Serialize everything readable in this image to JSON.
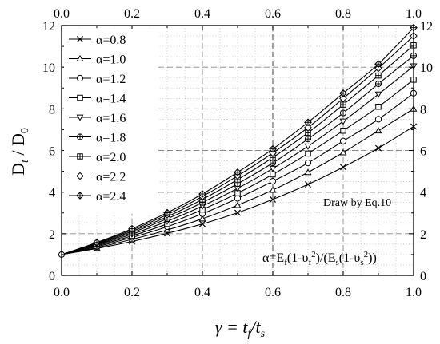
{
  "chart_data": {
    "type": "line",
    "xlabel": {
      "base": "γ = t",
      "sub1": "f",
      "mid": "/t",
      "sub2": "s"
    },
    "ylabel": {
      "base": "D",
      "sub1": "t",
      "mid": " / D",
      "sub2": "0"
    },
    "xlim": [
      0,
      1
    ],
    "ylim": [
      0,
      12
    ],
    "x_ticks": [
      "0.0",
      "0.2",
      "0.4",
      "0.6",
      "0.8",
      "1.0"
    ],
    "y_ticks": [
      "0",
      "2",
      "4",
      "6",
      "8",
      "10",
      "12"
    ],
    "grid": "dotted, dashed at x=0.6, y=4",
    "legend_position": "top-left",
    "x": [
      0.0,
      0.1,
      0.2,
      0.3,
      0.4,
      0.5,
      0.6,
      0.7,
      0.8,
      0.9,
      1.0
    ],
    "series": [
      {
        "name": "α=0.8",
        "marker": "x",
        "values": [
          1.0,
          1.29,
          1.63,
          2.02,
          2.47,
          3.01,
          3.65,
          4.37,
          5.2,
          6.11,
          7.15
        ]
      },
      {
        "name": "α=1.0",
        "marker": "triangle-up",
        "values": [
          1.0,
          1.33,
          1.73,
          2.18,
          2.72,
          3.37,
          4.1,
          4.95,
          5.9,
          6.95,
          8.0
        ]
      },
      {
        "name": "α=1.2",
        "marker": "circle",
        "values": [
          1.0,
          1.38,
          1.82,
          2.34,
          2.96,
          3.7,
          4.52,
          5.4,
          6.45,
          7.5,
          8.75
        ]
      },
      {
        "name": "α=1.4",
        "marker": "square",
        "values": [
          1.0,
          1.42,
          1.9,
          2.47,
          3.16,
          3.95,
          4.85,
          5.85,
          6.95,
          8.1,
          9.4
        ]
      },
      {
        "name": "α=1.6",
        "marker": "triangle-down",
        "values": [
          1.0,
          1.46,
          1.98,
          2.6,
          3.33,
          4.18,
          5.13,
          6.2,
          7.4,
          8.7,
          10.05
        ]
      },
      {
        "name": "α=1.8",
        "marker": "circle-plus",
        "values": [
          1.0,
          1.49,
          2.05,
          2.72,
          3.5,
          4.4,
          5.4,
          6.55,
          7.8,
          9.2,
          10.55
        ]
      },
      {
        "name": "α=2.0",
        "marker": "square-plus",
        "values": [
          1.0,
          1.52,
          2.12,
          2.82,
          3.65,
          4.6,
          5.66,
          6.85,
          8.2,
          9.6,
          11.05
        ]
      },
      {
        "name": "α=2.2",
        "marker": "diamond",
        "values": [
          1.0,
          1.55,
          2.18,
          2.92,
          3.79,
          4.78,
          5.88,
          7.1,
          8.5,
          9.95,
          11.5
        ]
      },
      {
        "name": "α=2.4",
        "marker": "diamond-plus",
        "values": [
          1.0,
          1.58,
          2.24,
          3.01,
          3.91,
          4.95,
          6.07,
          7.35,
          8.75,
          10.15,
          11.9
        ]
      }
    ],
    "annotations": {
      "draw_note": "Draw by  Eq.10",
      "formula": {
        "p1": "α=E",
        "s1": "f",
        "p2": "(1-υ",
        "s2": "f",
        "p3": "2",
        "p4": ")/(E",
        "s3": "s",
        "p5": "(1-υ",
        "s4": "s",
        "p6": "2",
        "p7": "))"
      }
    }
  }
}
